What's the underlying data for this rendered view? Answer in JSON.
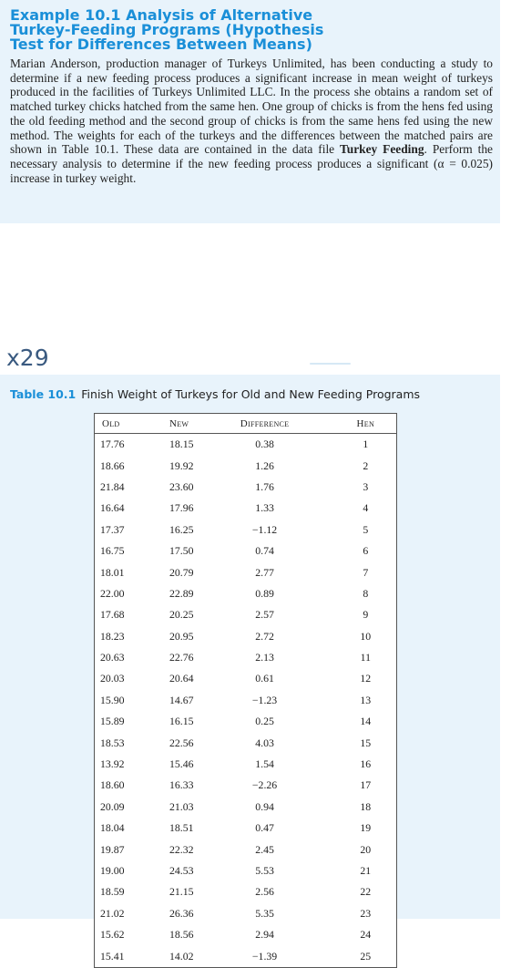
{
  "example": {
    "title": "Example 10.1 Analysis of Alternative\nTurkey-Feeding Programs (Hypothesis\nTest for Differences Between Means)",
    "body_part1": "Marian Anderson, production manager of Turkeys Unlimited, has been conducting a study to determine if a new feeding process produces a significant increase in mean weight of turkeys produced in the facilities of Turkeys Unlimited LLC. In the process she obtains a random set of matched turkey chicks hatched from the same hen. One group of chicks is from the hens fed using the old feeding method and the second group of chicks is from the same hens fed using the new method. The weights for each of the turkeys and the differences between the matched pairs are shown in Table 10.1. These data are contained in the data file ",
    "body_bold": "Turkey Feeding",
    "body_part2": ". Perform the necessary analysis to determine if the new feeding process produces a significant (α = 0.025) increase in turkey weight."
  },
  "annotation": "x29",
  "table": {
    "caption_number": "Table 10.1",
    "caption_text": "Finish Weight of Turkeys for Old and New Feeding Programs",
    "headers": [
      "Old",
      "New",
      "Difference",
      "Hen"
    ],
    "rows": [
      [
        "17.76",
        "18.15",
        "0.38",
        "1"
      ],
      [
        "18.66",
        "19.92",
        "1.26",
        "2"
      ],
      [
        "21.84",
        "23.60",
        "1.76",
        "3"
      ],
      [
        "16.64",
        "17.96",
        "1.33",
        "4"
      ],
      [
        "17.37",
        "16.25",
        "−1.12",
        "5"
      ],
      [
        "16.75",
        "17.50",
        "0.74",
        "6"
      ],
      [
        "18.01",
        "20.79",
        "2.77",
        "7"
      ],
      [
        "22.00",
        "22.89",
        "0.89",
        "8"
      ],
      [
        "17.68",
        "20.25",
        "2.57",
        "9"
      ],
      [
        "18.23",
        "20.95",
        "2.72",
        "10"
      ],
      [
        "20.63",
        "22.76",
        "2.13",
        "11"
      ],
      [
        "20.03",
        "20.64",
        "0.61",
        "12"
      ],
      [
        "15.90",
        "14.67",
        "−1.23",
        "13"
      ],
      [
        "15.89",
        "16.15",
        "0.25",
        "14"
      ],
      [
        "18.53",
        "22.56",
        "4.03",
        "15"
      ],
      [
        "13.92",
        "15.46",
        "1.54",
        "16"
      ],
      [
        "18.60",
        "16.33",
        "−2.26",
        "17"
      ],
      [
        "20.09",
        "21.03",
        "0.94",
        "18"
      ],
      [
        "18.04",
        "18.51",
        "0.47",
        "19"
      ],
      [
        "19.87",
        "22.32",
        "2.45",
        "20"
      ],
      [
        "19.00",
        "24.53",
        "5.53",
        "21"
      ],
      [
        "18.59",
        "21.15",
        "2.56",
        "22"
      ],
      [
        "21.02",
        "26.36",
        "5.35",
        "23"
      ],
      [
        "15.62",
        "18.56",
        "2.94",
        "24"
      ],
      [
        "15.41",
        "14.02",
        "−1.39",
        "25"
      ]
    ]
  }
}
